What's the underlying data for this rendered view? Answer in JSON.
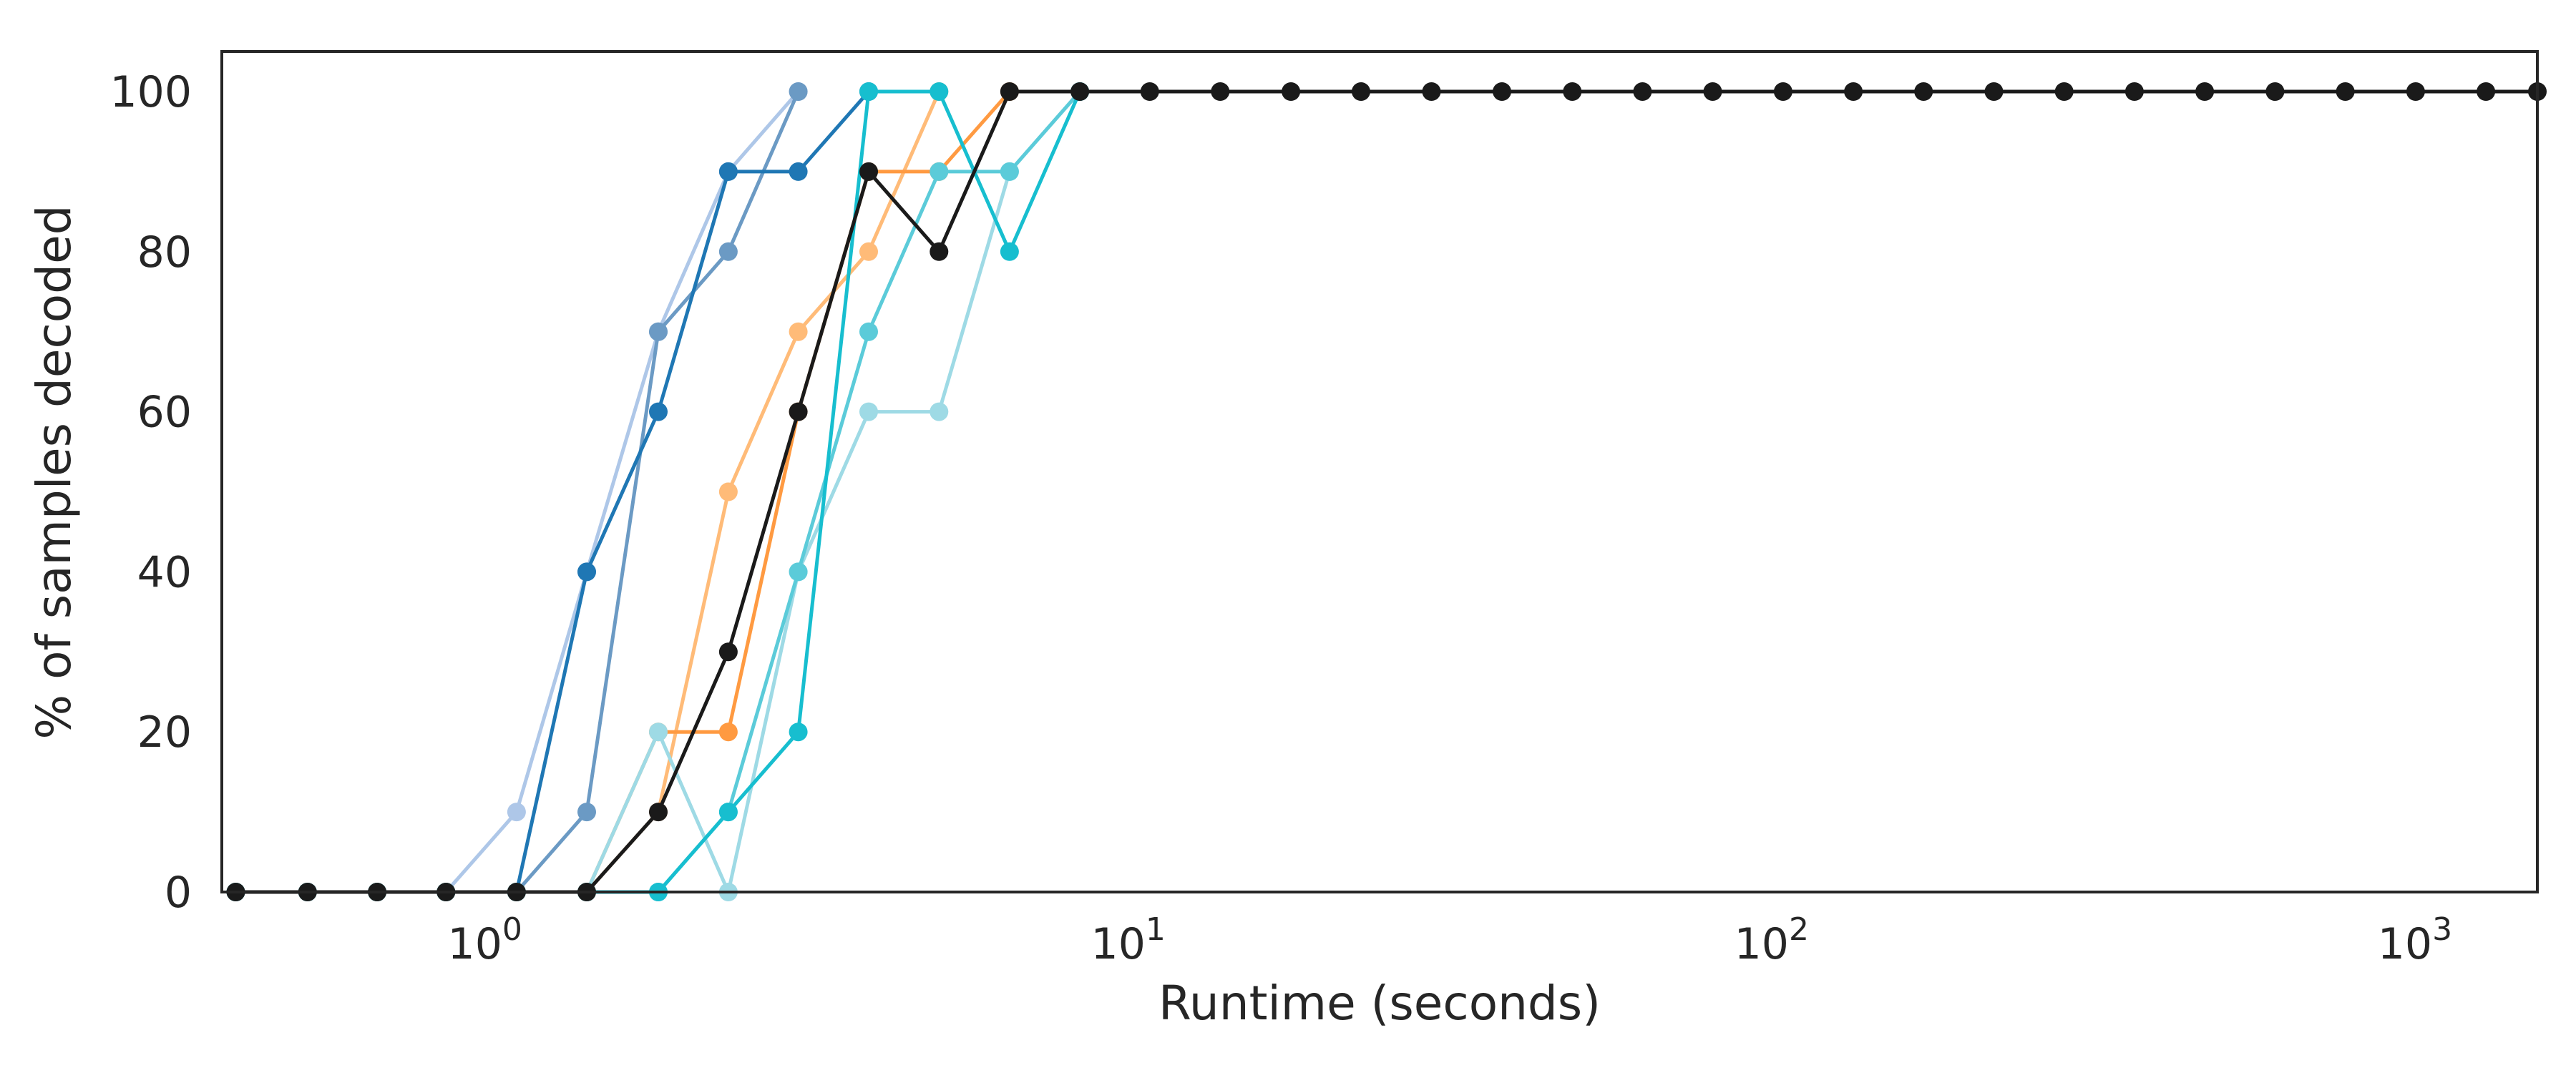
{
  "chart_data": {
    "type": "line",
    "xlabel": "Runtime (seconds)",
    "ylabel": "% of samples decoded",
    "xscale": "log",
    "xlim": [
      0.39,
      1550
    ],
    "ylim": [
      0,
      105
    ],
    "grid": false,
    "legend": "none",
    "x_ticks": [
      {
        "base": "10",
        "exp": "0",
        "value": 1
      },
      {
        "base": "10",
        "exp": "1",
        "value": 10
      },
      {
        "base": "10",
        "exp": "2",
        "value": 100
      },
      {
        "base": "10",
        "exp": "3",
        "value": 1000
      }
    ],
    "y_ticks": [
      {
        "label": "0",
        "value": 0
      },
      {
        "label": "20",
        "value": 20
      },
      {
        "label": "40",
        "value": 40
      },
      {
        "label": "60",
        "value": 60
      },
      {
        "label": "80",
        "value": 80
      },
      {
        "label": "100",
        "value": 100
      }
    ],
    "series": [
      {
        "color": "#aec7e8",
        "x": [
          0.41,
          0.53,
          0.68,
          0.87,
          1.12,
          1.44,
          1.86,
          2.39,
          3.07
        ],
        "y": [
          0,
          0,
          0,
          0,
          10,
          40,
          70,
          90,
          100
        ]
      },
      {
        "color": "#6b9ac4",
        "x": [
          0.41,
          0.53,
          0.68,
          0.87,
          1.12,
          1.44,
          1.86,
          2.39,
          3.07
        ],
        "y": [
          0,
          0,
          0,
          0,
          0,
          10,
          70,
          80,
          100
        ]
      },
      {
        "color": "#1f77b4",
        "x": [
          0.41,
          0.53,
          0.68,
          0.87,
          1.12,
          1.44,
          1.86,
          2.39,
          3.07,
          3.95
        ],
        "y": [
          0,
          0,
          0,
          0,
          0,
          40,
          60,
          90,
          90,
          100
        ]
      },
      {
        "color": "#ffbb78",
        "x": [
          0.41,
          0.53,
          0.68,
          0.87,
          1.12,
          1.44,
          1.86,
          2.39,
          3.07,
          3.95,
          5.08
        ],
        "y": [
          0,
          0,
          0,
          0,
          0,
          0,
          10,
          50,
          70,
          80,
          100
        ]
      },
      {
        "color": "#ff9a41",
        "x": [
          0.41,
          0.53,
          0.68,
          0.87,
          1.12,
          1.44,
          1.86,
          2.39,
          3.07,
          3.95,
          5.08,
          6.54
        ],
        "y": [
          0,
          0,
          0,
          0,
          0,
          0,
          20,
          20,
          60,
          90,
          90,
          100
        ]
      },
      {
        "color": "#9edae5",
        "x": [
          0.41,
          0.53,
          0.68,
          0.87,
          1.12,
          1.44,
          1.86,
          2.39,
          3.07,
          3.95,
          5.08,
          6.54,
          8.41
        ],
        "y": [
          0,
          0,
          0,
          0,
          0,
          0,
          20,
          0,
          40,
          60,
          60,
          90,
          100
        ]
      },
      {
        "color": "#5bcbd9",
        "x": [
          0.41,
          0.53,
          0.68,
          0.87,
          1.12,
          1.44,
          1.86,
          2.39,
          3.07,
          3.95,
          5.08,
          6.54,
          8.41
        ],
        "y": [
          0,
          0,
          0,
          0,
          0,
          0,
          0,
          10,
          40,
          70,
          90,
          90,
          100
        ]
      },
      {
        "color": "#17becf",
        "x": [
          0.41,
          0.53,
          0.68,
          0.87,
          1.12,
          1.44,
          1.86,
          2.39,
          3.07,
          3.95,
          5.08,
          6.54,
          8.41
        ],
        "y": [
          0,
          0,
          0,
          0,
          0,
          0,
          0,
          10,
          20,
          100,
          100,
          80,
          100
        ]
      },
      {
        "color": "#1a1a1a",
        "x": [
          0.41,
          0.53,
          0.68,
          0.87,
          1.12,
          1.44,
          1.86,
          2.39,
          3.07,
          3.95,
          5.08,
          6.54,
          8.41,
          10.8,
          13.9,
          17.9,
          23.0,
          29.6,
          38.1,
          49.0,
          63.0,
          81.0,
          104.2,
          134.0,
          172.3,
          221.6,
          285.0,
          366.5,
          471.3,
          606.1,
          779.5,
          1002.5,
          1289.2,
          1550
        ],
        "y": [
          0,
          0,
          0,
          0,
          0,
          0,
          10,
          30,
          60,
          90,
          80,
          100,
          100,
          100,
          100,
          100,
          100,
          100,
          100,
          100,
          100,
          100,
          100,
          100,
          100,
          100,
          100,
          100,
          100,
          100,
          100,
          100,
          100,
          100
        ]
      }
    ]
  }
}
